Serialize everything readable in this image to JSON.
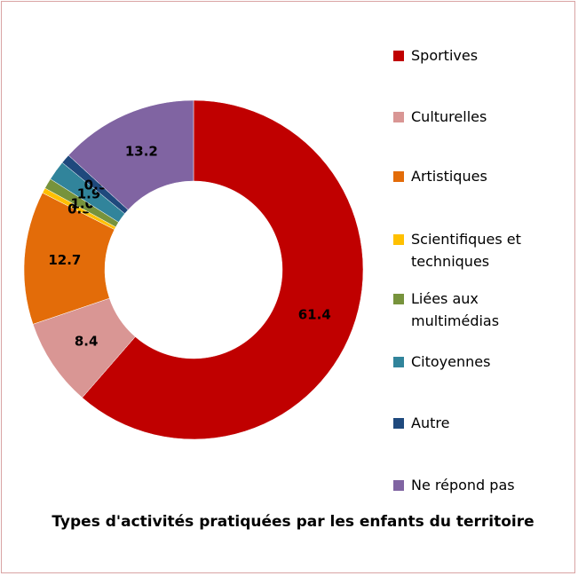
{
  "chart_data": {
    "type": "donut",
    "title": "Types d'activités pratiquées par les enfants du territoire",
    "categories": [
      "Sportives",
      "Culturelles",
      "Artistiques",
      "Scientifiques et techniques",
      "Liées aux multimédias",
      "Citoyennes",
      "Autre",
      "Ne répond pas"
    ],
    "values": [
      61.4,
      8.4,
      12.7,
      0.5,
      1.0,
      1.9,
      0.9,
      13.2
    ],
    "value_labels": [
      "61.4",
      "8.4",
      "12.7",
      "0.5",
      "1.0",
      "1.9",
      "0.9",
      "13.2"
    ],
    "colors": [
      "#c00000",
      "#d99694",
      "#e36c09",
      "#ffc000",
      "#77933c",
      "#31849b",
      "#1f497d",
      "#8064a2"
    ],
    "legend": "right"
  }
}
